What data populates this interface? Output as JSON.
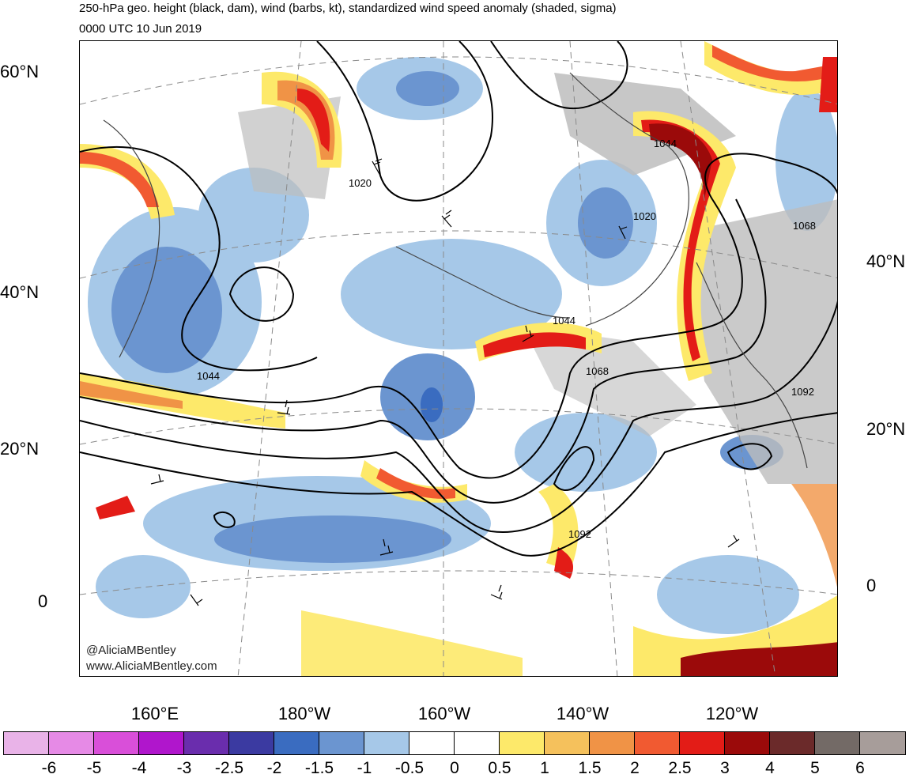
{
  "title": "250-hPa geo. height (black, dam), wind (barbs, kt), standardized wind speed anomaly (shaded, sigma)",
  "valid_time": "0000 UTC 10 Jun 2019",
  "credit": {
    "handle": "@AliciaMBentley",
    "website": "www.AliciaMBentley.com"
  },
  "lat_labels_left": [
    "60°N",
    "40°N",
    "20°N",
    "0"
  ],
  "lat_labels_right": [
    "40°N",
    "20°N",
    "0"
  ],
  "lon_labels": [
    "160°E",
    "180°W",
    "160°W",
    "140°W",
    "120°W"
  ],
  "contour_labels": [
    "1020",
    "1044",
    "1020",
    "1044",
    "1068",
    "1044",
    "1068",
    "1092",
    "1092"
  ],
  "colorbar": {
    "labels": [
      "-6",
      "-5",
      "-4",
      "-3",
      "-2.5",
      "-2",
      "-1.5",
      "-1",
      "-0.5",
      "0",
      "0.5",
      "1",
      "1.5",
      "2",
      "2.5",
      "3",
      "4",
      "5",
      "6"
    ],
    "colors": [
      "#e9b3e8",
      "#e68ae6",
      "#d94fd9",
      "#b016cc",
      "#6a2dad",
      "#3b3aa1",
      "#3a6cc0",
      "#6b95d0",
      "#a6c8e8",
      "#ffffff",
      "#ffffff",
      "#fde96a",
      "#f5c15c",
      "#f09346",
      "#f15a31",
      "#e31c17",
      "#9b0a0a",
      "#6b2a2a",
      "#736a66",
      "#a79d9a"
    ]
  }
}
